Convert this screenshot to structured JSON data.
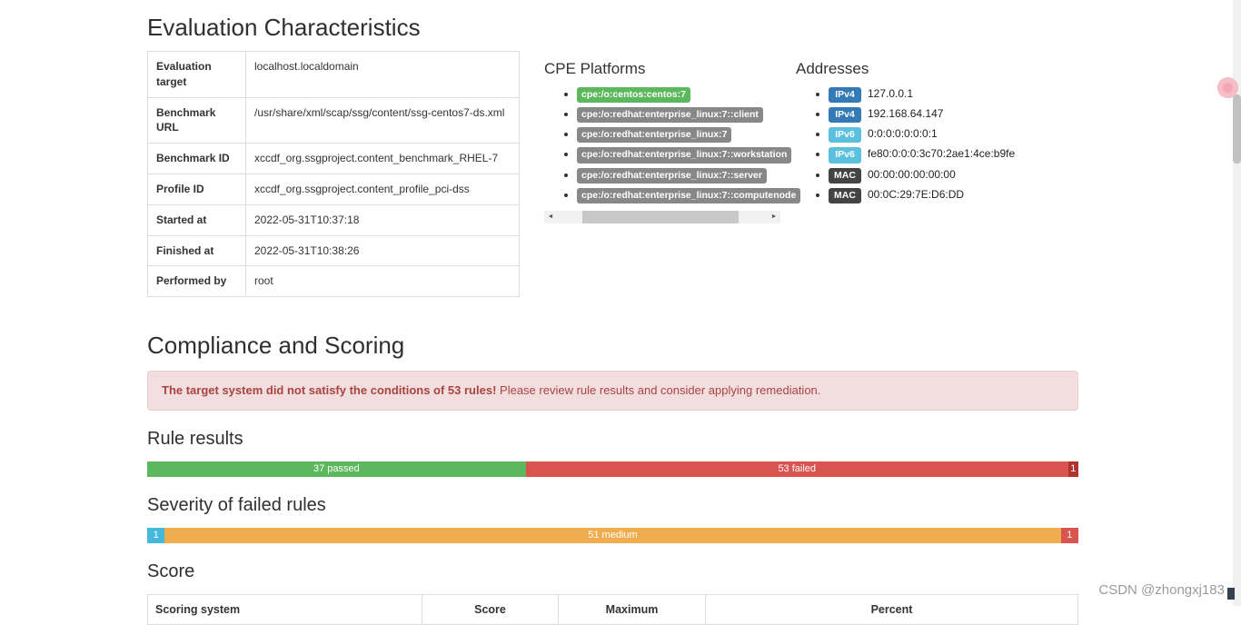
{
  "page": {
    "title": "Evaluation Characteristics",
    "watermark": "CSDN @zhongxj183"
  },
  "evaluation": {
    "rows": [
      {
        "label": "Evaluation target",
        "value": "localhost.localdomain"
      },
      {
        "label": "Benchmark URL",
        "value": "/usr/share/xml/scap/ssg/content/ssg-centos7-ds.xml"
      },
      {
        "label": "Benchmark ID",
        "value": "xccdf_org.ssgproject.content_benchmark_RHEL-7"
      },
      {
        "label": "Profile ID",
        "value": "xccdf_org.ssgproject.content_profile_pci-dss"
      },
      {
        "label": "Started at",
        "value": "2022-05-31T10:37:18"
      },
      {
        "label": "Finished at",
        "value": "2022-05-31T10:38:26"
      },
      {
        "label": "Performed by",
        "value": "root"
      }
    ]
  },
  "cpe": {
    "title": "CPE Platforms",
    "items": [
      {
        "label": "cpe:/o:centos:centos:7",
        "matched": true
      },
      {
        "label": "cpe:/o:redhat:enterprise_linux:7::client",
        "matched": false
      },
      {
        "label": "cpe:/o:redhat:enterprise_linux:7",
        "matched": false
      },
      {
        "label": "cpe:/o:redhat:enterprise_linux:7::workstation",
        "matched": false
      },
      {
        "label": "cpe:/o:redhat:enterprise_linux:7::server",
        "matched": false
      },
      {
        "label": "cpe:/o:redhat:enterprise_linux:7::computenode",
        "matched": false
      }
    ]
  },
  "addresses": {
    "title": "Addresses",
    "items": [
      {
        "type": "IPv4",
        "value": "127.0.0.1"
      },
      {
        "type": "IPv4",
        "value": "192.168.64.147"
      },
      {
        "type": "IPv6",
        "value": "0:0:0:0:0:0:0:1"
      },
      {
        "type": "IPv6",
        "value": "fe80:0:0:0:3c70:2ae1:4ce:b9fe"
      },
      {
        "type": "MAC",
        "value": "00:00:00:00:00:00"
      },
      {
        "type": "MAC",
        "value": "00:0C:29:7E:D6:DD"
      }
    ]
  },
  "compliance": {
    "title": "Compliance and Scoring",
    "alert": {
      "strong": "The target system did not satisfy the conditions of 53 rules!",
      "text": "Please review rule results and consider applying remediation."
    }
  },
  "rule_results": {
    "title": "Rule results",
    "segments": [
      {
        "label": "37 passed",
        "value": 37,
        "color": "#5cb85c"
      },
      {
        "label": "53 failed",
        "value": 53,
        "color": "#d9534f"
      },
      {
        "label": "1",
        "value": 1,
        "color": "#b2332e"
      }
    ]
  },
  "severity": {
    "title": "Severity of failed rules",
    "segments": [
      {
        "label": "1",
        "value": 1,
        "color": "#46b8da"
      },
      {
        "label": "51 medium",
        "value": 51,
        "color": "#f0ad4e"
      },
      {
        "label": "1",
        "value": 1,
        "color": "#d9534f"
      }
    ]
  },
  "score": {
    "title": "Score",
    "headers": [
      "Scoring system",
      "Score",
      "Maximum",
      "Percent"
    ]
  },
  "scrollbars": {
    "horizontal_left_arrow": "◄",
    "horizontal_right_arrow": "►"
  },
  "colors": {
    "badge_matched": "#5cb85c",
    "badge_unmatched": "#888888",
    "ipv4_badge": "#337ab7",
    "ipv6_badge": "#5bc0de",
    "mac_badge": "#444444",
    "alert_bg": "#f2dede",
    "alert_text": "#a94442"
  }
}
